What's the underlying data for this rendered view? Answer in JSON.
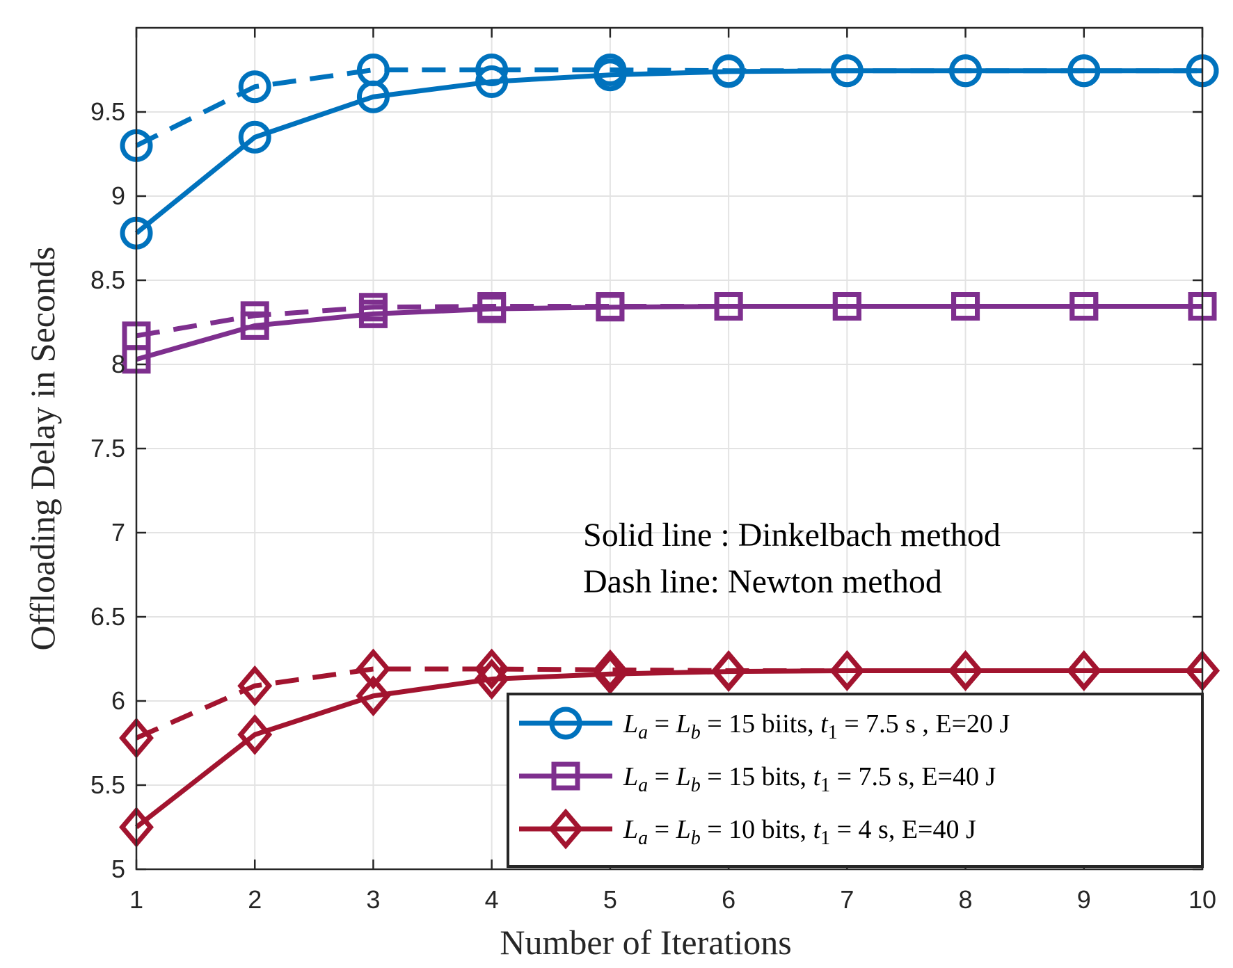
{
  "chart_data": {
    "type": "line",
    "title": "",
    "xlabel": "Number of Iterations",
    "ylabel": "Offloading Delay in Seconds",
    "xlim": [
      1,
      10
    ],
    "ylim": [
      5,
      10
    ],
    "xticks": [
      "1",
      "2",
      "3",
      "4",
      "5",
      "6",
      "7",
      "8",
      "9",
      "10"
    ],
    "yticks": [
      "5",
      "5.5",
      "6",
      "6.5",
      "7",
      "7.5",
      "8",
      "8.5",
      "9",
      "9.5"
    ],
    "grid": true,
    "annotations": [
      "Solid line : Dinkelbach method",
      "Dash line: Newton method"
    ],
    "legend_position": "bottom-right",
    "x": [
      1,
      2,
      3,
      4,
      5,
      6,
      7,
      8,
      9,
      10
    ],
    "series": [
      {
        "name": "L_a = L_b = 15 biits, t_1 = 7.5 s , E=20 J",
        "color": "#0072BD",
        "marker": "circle",
        "legend": {
          "pre": "L",
          "sub1": "a",
          "mid1": " = ",
          "l2": "L",
          "sub2": "b",
          "mid2": " = 15 biits, ",
          "t": "t",
          "sub3": "1",
          "post": " = 7.5 s , E=20 J"
        },
        "solid": [
          8.78,
          9.35,
          9.59,
          9.68,
          9.72,
          9.74,
          9.745,
          9.745,
          9.745,
          9.745
        ],
        "dashed": [
          9.3,
          9.65,
          9.75,
          9.75,
          9.75,
          9.745,
          9.745,
          9.745,
          9.745,
          9.745
        ]
      },
      {
        "name": "L_a = L_b = 15 bits, t_1 = 7.5 s, E=40 J",
        "color": "#7E2F8E",
        "marker": "square",
        "legend": {
          "pre": "L",
          "sub1": "a",
          "mid1": " = ",
          "l2": "L",
          "sub2": "b",
          "mid2": " = 15 bits, ",
          "t": "t",
          "sub3": "1",
          "post": " = 7.5 s, E=40 J"
        },
        "solid": [
          8.03,
          8.23,
          8.3,
          8.33,
          8.34,
          8.345,
          8.345,
          8.345,
          8.345,
          8.345
        ],
        "dashed": [
          8.17,
          8.29,
          8.34,
          8.345,
          8.345,
          8.345,
          8.345,
          8.345,
          8.345,
          8.345
        ]
      },
      {
        "name": "L_a = L_b = 10 bits, t_1 = 4 s, E=40 J",
        "color": "#A2142F",
        "marker": "diamond",
        "legend": {
          "pre": "L",
          "sub1": "a",
          "mid1": " = ",
          "l2": "L",
          "sub2": "b",
          "mid2": " = 10 bits, ",
          "t": "t",
          "sub3": "1",
          "post": " = 4 s, E=40 J"
        },
        "solid": [
          5.25,
          5.8,
          6.03,
          6.13,
          6.16,
          6.175,
          6.18,
          6.18,
          6.18,
          6.18
        ],
        "dashed": [
          5.78,
          6.09,
          6.19,
          6.19,
          6.185,
          6.18,
          6.18,
          6.18,
          6.18,
          6.18
        ]
      }
    ]
  }
}
